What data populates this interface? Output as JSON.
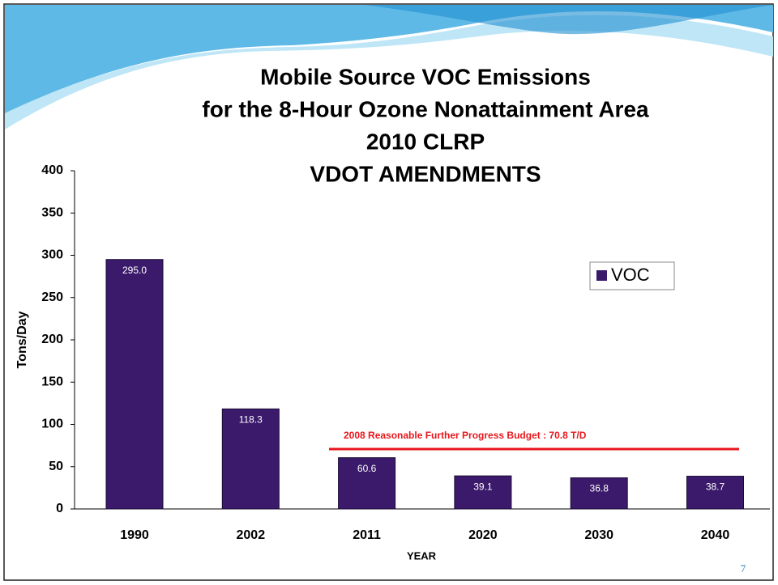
{
  "chart_data": {
    "type": "bar",
    "title": [
      "Mobile Source VOC Emissions",
      "for the 8-Hour Ozone Nonattainment Area",
      "2010 CLRP",
      "VDOT AMENDMENTS"
    ],
    "x_label": "YEAR",
    "y_label": "Tons/Day",
    "categories": [
      "1990",
      "2002",
      "2011",
      "2020",
      "2030",
      "2040"
    ],
    "series": [
      {
        "name": "VOC",
        "color": "#3b1a6b",
        "values": [
          295.0,
          118.3,
          60.6,
          39.1,
          36.8,
          38.7
        ],
        "value_labels": [
          "295.0",
          "118.3",
          "60.6",
          "39.1",
          "36.8",
          "38.7"
        ]
      }
    ],
    "ylim": [
      0,
      400
    ],
    "yticks": [
      0,
      50,
      100,
      150,
      200,
      250,
      300,
      350,
      400
    ],
    "reference_line": {
      "value": 70.8,
      "label": "2008 Reasonable Further Progress Budget :  70.8 T/D",
      "color": "#e8161b"
    },
    "legend": "upper right"
  },
  "page_number": "7"
}
